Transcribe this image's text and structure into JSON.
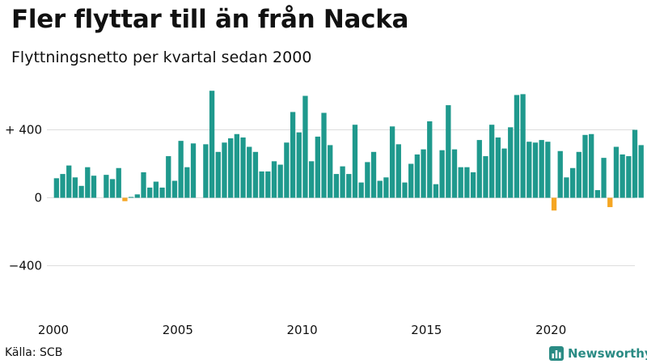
{
  "title": "Fler flyttar till än från Nacka",
  "subtitle": "Flyttningsnetto per kvartal sedan 2000",
  "source": "Källa: SCB",
  "logo": {
    "text": "Newsworthy",
    "icon": "bar-chart-icon"
  },
  "colors": {
    "positive": "#1f998d",
    "negative": "#f5a623",
    "grid": "#dddddd",
    "brand": "#2a8b84"
  },
  "chart_data": {
    "type": "bar",
    "title": "Fler flyttar till än från Nacka",
    "subtitle": "Flyttningsnetto per kvartal sedan 2000",
    "xlabel": "",
    "ylabel": "",
    "ylim": [
      -600,
      640
    ],
    "grid": true,
    "y_ticks": [
      {
        "value": 400,
        "label": "+ 400"
      },
      {
        "value": 0,
        "label": "0"
      },
      {
        "value": -400,
        "label": "−400"
      }
    ],
    "x_ticks": [
      "2000",
      "2005",
      "2010",
      "2015",
      "2020"
    ],
    "x_tick_positions": [
      2000,
      2005,
      2010,
      2015,
      2020
    ],
    "categories": [
      "2000 Q1",
      "2000 Q2",
      "2000 Q3",
      "2000 Q4",
      "2001 Q1",
      "2001 Q2",
      "2001 Q3",
      "2001 Q4",
      "2002 Q1",
      "2002 Q2",
      "2002 Q3",
      "2002 Q4",
      "2003 Q1",
      "2003 Q2",
      "2003 Q3",
      "2003 Q4",
      "2004 Q1",
      "2004 Q2",
      "2004 Q3",
      "2004 Q4",
      "2005 Q1",
      "2005 Q2",
      "2005 Q3",
      "2005 Q4",
      "2006 Q1",
      "2006 Q2",
      "2006 Q3",
      "2006 Q4",
      "2007 Q1",
      "2007 Q2",
      "2007 Q3",
      "2007 Q4",
      "2008 Q1",
      "2008 Q2",
      "2008 Q3",
      "2008 Q4",
      "2009 Q1",
      "2009 Q2",
      "2009 Q3",
      "2009 Q4",
      "2010 Q1",
      "2010 Q2",
      "2010 Q3",
      "2010 Q4",
      "2011 Q1",
      "2011 Q2",
      "2011 Q3",
      "2011 Q4",
      "2012 Q1",
      "2012 Q2",
      "2012 Q3",
      "2012 Q4",
      "2013 Q1",
      "2013 Q2",
      "2013 Q3",
      "2013 Q4",
      "2014 Q1",
      "2014 Q2",
      "2014 Q3",
      "2014 Q4",
      "2015 Q1",
      "2015 Q2",
      "2015 Q3",
      "2015 Q4",
      "2016 Q1",
      "2016 Q2",
      "2016 Q3",
      "2016 Q4",
      "2017 Q1",
      "2017 Q2",
      "2017 Q3",
      "2017 Q4",
      "2018 Q1",
      "2018 Q2",
      "2018 Q3",
      "2018 Q4",
      "2019 Q1",
      "2019 Q2",
      "2019 Q3",
      "2019 Q4",
      "2020 Q1",
      "2020 Q2",
      "2020 Q3",
      "2020 Q4",
      "2021 Q1",
      "2021 Q2",
      "2021 Q3",
      "2021 Q4",
      "2022 Q1",
      "2022 Q2",
      "2022 Q3",
      "2022 Q4",
      "2023 Q1",
      "2023 Q2",
      "2023 Q3",
      "2023 Q4"
    ],
    "values": [
      115,
      140,
      190,
      120,
      70,
      180,
      130,
      0,
      135,
      110,
      175,
      -20,
      5,
      20,
      150,
      60,
      95,
      60,
      245,
      100,
      335,
      180,
      320,
      0,
      315,
      630,
      270,
      325,
      350,
      375,
      355,
      300,
      270,
      155,
      155,
      215,
      195,
      325,
      505,
      385,
      600,
      215,
      360,
      500,
      310,
      140,
      185,
      140,
      430,
      90,
      210,
      270,
      100,
      120,
      420,
      315,
      90,
      200,
      255,
      285,
      450,
      80,
      280,
      545,
      285,
      180,
      180,
      150,
      340,
      245,
      430,
      355,
      290,
      415,
      605,
      610,
      330,
      325,
      340,
      330,
      -75,
      275,
      120,
      175,
      270,
      370,
      375,
      45,
      235,
      -55,
      300,
      255,
      245,
      400,
      310,
      0
    ]
  }
}
